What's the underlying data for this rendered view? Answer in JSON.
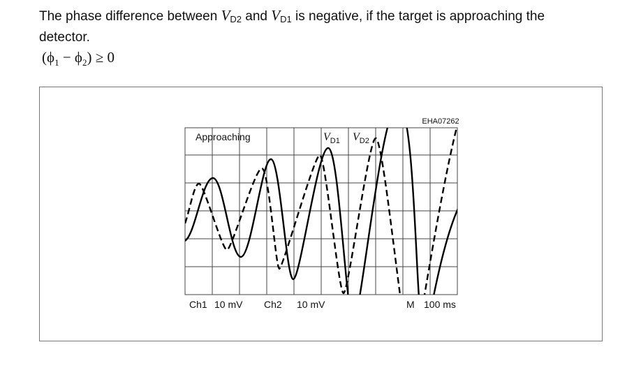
{
  "paragraph": {
    "parts": [
      "The phase difference between ",
      "V",
      "D2",
      " and ",
      "V",
      "D1",
      " is negative, if the target is approaching the",
      "detector."
    ]
  },
  "formula": {
    "open": "(",
    "phi1": "ϕ",
    "sub1": "1",
    "minus": " − ",
    "phi2": "ϕ",
    "sub2": "2",
    "close": ")",
    "relation": " ≥ 0"
  },
  "figure": {
    "code": "EHA07262",
    "label": "Approaching",
    "trace1": {
      "letter": "V",
      "sub": "D1"
    },
    "trace2": {
      "letter": "V",
      "sub": "D2"
    },
    "footer": [
      "Ch1",
      "10 mV",
      "Ch2",
      "10 mV",
      "M",
      "100 ms"
    ]
  }
}
